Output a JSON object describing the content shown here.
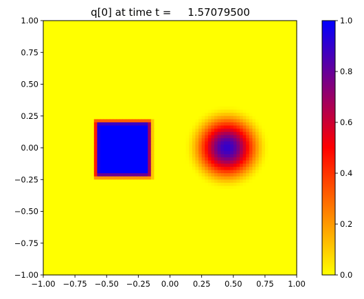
{
  "chart_data": {
    "type": "heatmap",
    "title": "q[0] at time t =     1.57079500",
    "xlabel": "",
    "ylabel": "",
    "xlim": [
      -1.0,
      1.0
    ],
    "ylim": [
      -1.0,
      1.0
    ],
    "grid": false,
    "x_ticks": [
      "−1.00",
      "−0.75",
      "−0.50",
      "−0.25",
      "0.00",
      "0.25",
      "0.50",
      "0.75",
      "1.00"
    ],
    "x_tick_values": [
      -1.0,
      -0.75,
      -0.5,
      -0.25,
      0.0,
      0.25,
      0.5,
      0.75,
      1.0
    ],
    "y_ticks": [
      "−1.00",
      "−0.75",
      "−0.50",
      "−0.25",
      "0.00",
      "0.25",
      "0.50",
      "0.75",
      "1.00"
    ],
    "y_tick_values": [
      -1.0,
      -0.75,
      -0.5,
      -0.25,
      0.0,
      0.25,
      0.5,
      0.75,
      1.0
    ],
    "grid_resolution": 80,
    "background_value": 0.0,
    "features": [
      {
        "shape": "square",
        "center": [
          -0.37,
          -0.01
        ],
        "half_width": 0.215,
        "value": 1.0,
        "edge_width": 0.03
      },
      {
        "shape": "gaussian-cone",
        "center": [
          0.45,
          0.0
        ],
        "peak_value": 0.9,
        "radius": 0.34
      }
    ],
    "colorbar": {
      "range": [
        0.0,
        1.0
      ],
      "ticks": [
        "0.0",
        "0.2",
        "0.4",
        "0.6",
        "0.8",
        "1.0"
      ],
      "tick_values": [
        0.0,
        0.2,
        0.4,
        0.6,
        0.8,
        1.0
      ],
      "colormap_stops": [
        {
          "value": 0.0,
          "color": "#ffff00"
        },
        {
          "value": 0.5,
          "color": "#ff0000"
        },
        {
          "value": 1.0,
          "color": "#0000ff"
        }
      ]
    }
  }
}
